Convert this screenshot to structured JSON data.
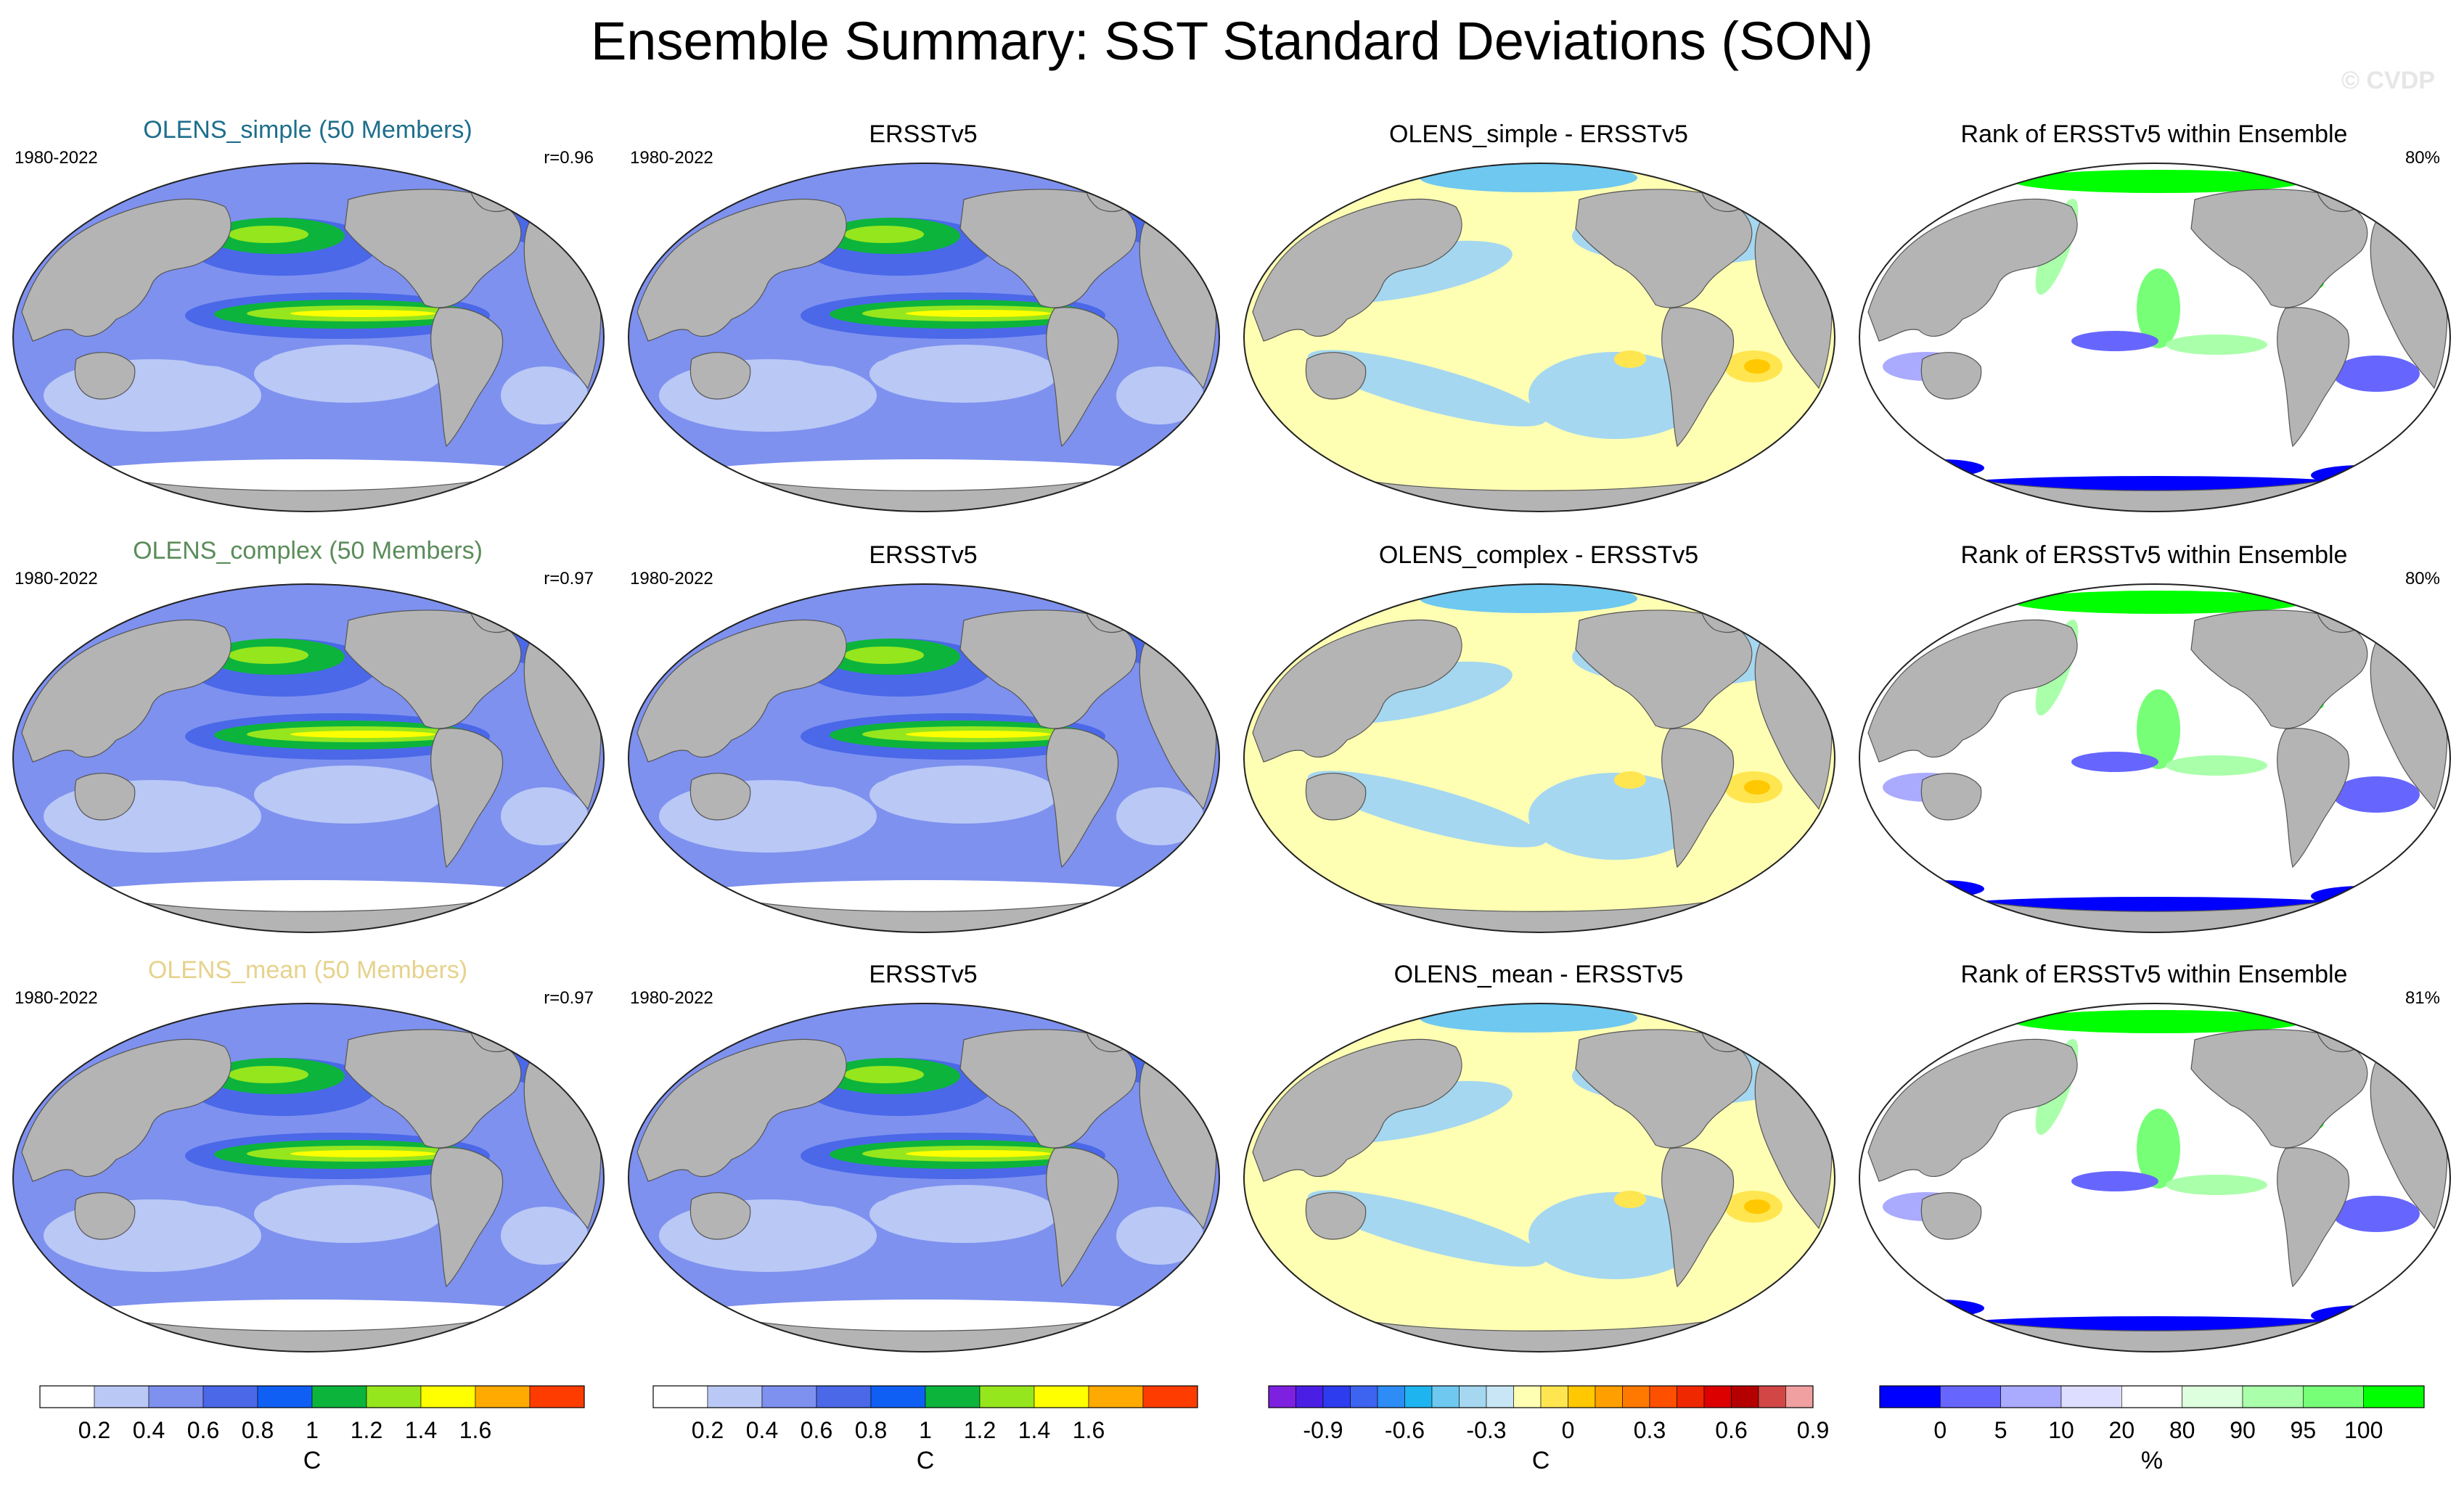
{
  "title": "Ensemble Summary: SST Standard Deviations (SON)",
  "watermark": "© CVDP",
  "colors": {
    "land": "#b4b4b4",
    "ocean_white": "#ffffff",
    "std_levels": [
      "#ffffff",
      "#b9c8f5",
      "#7e91ef",
      "#4a68e8",
      "#0f5ff5",
      "#0cb43c",
      "#96e61e",
      "#ffff00",
      "#ffaa00",
      "#ff3c00"
    ],
    "diff_levels": [
      "#7d20e0",
      "#4b1ee6",
      "#2d3cef",
      "#3c64f0",
      "#2d8cf5",
      "#1eb4f0",
      "#6ec8f0",
      "#a5d7f0",
      "#c8e6f5",
      "#ffffb4",
      "#ffe650",
      "#ffc800",
      "#ffa000",
      "#ff7800",
      "#ff5000",
      "#f02800",
      "#dc0000",
      "#b40000",
      "#d24646",
      "#f0a0a0"
    ],
    "rank_levels": [
      "#0000ff",
      "#6666ff",
      "#aaaaff",
      "#ddddff",
      "#ffffff",
      "#ddffdd",
      "#aaffaa",
      "#77ff77",
      "#00ff00"
    ]
  },
  "rows": [
    {
      "ensemble_label": "OLENS_simple (50 Members)",
      "ensemble_color": "#1e6e8c",
      "period": "1980-2022",
      "corr": "r=0.96",
      "obs_title": "ERSSTv5",
      "obs_period": "1980-2022",
      "diff_title": "OLENS_simple - ERSSTv5",
      "rank_title": "Rank of ERSSTv5 within Ensemble",
      "rank_pct": "80%"
    },
    {
      "ensemble_label": "OLENS_complex (50 Members)",
      "ensemble_color": "#5a8c5a",
      "period": "1980-2022",
      "corr": "r=0.97",
      "obs_title": "ERSSTv5",
      "obs_period": "1980-2022",
      "diff_title": "OLENS_complex - ERSSTv5",
      "rank_title": "Rank of ERSSTv5 within Ensemble",
      "rank_pct": "80%"
    },
    {
      "ensemble_label": "OLENS_mean (50 Members)",
      "ensemble_color": "#e6d28c",
      "period": "1980-2022",
      "corr": "r=0.97",
      "obs_title": "ERSSTv5",
      "obs_period": "1980-2022",
      "diff_title": "OLENS_mean - ERSSTv5",
      "rank_title": "Rank of ERSSTv5 within Ensemble",
      "rank_pct": "81%"
    }
  ],
  "colorbars": [
    {
      "ticks": [
        "0.2",
        "0.4",
        "0.6",
        "0.8",
        "1",
        "1.2",
        "1.4",
        "1.6"
      ],
      "unit": "C"
    },
    {
      "ticks": [
        "0.2",
        "0.4",
        "0.6",
        "0.8",
        "1",
        "1.2",
        "1.4",
        "1.6"
      ],
      "unit": "C"
    },
    {
      "ticks": [
        "-0.9",
        "-0.6",
        "-0.3",
        "0",
        "0.3",
        "0.6",
        "0.9"
      ],
      "unit": "C"
    },
    {
      "ticks": [
        "0",
        "5",
        "10",
        "20",
        "80",
        "90",
        "95",
        "100"
      ],
      "unit": "%"
    }
  ],
  "chart_data": {
    "type": "heatmap",
    "title": "Ensemble Summary: SST Standard Deviations (SON)",
    "std_contour_levels": [
      0.2,
      0.4,
      0.6,
      0.8,
      1,
      1.2,
      1.4,
      1.6
    ],
    "diff_contour_levels": [
      -0.9,
      -0.6,
      -0.3,
      0,
      0.3,
      0.6,
      0.9
    ],
    "rank_levels": [
      0,
      5,
      10,
      20,
      80,
      90,
      95,
      100
    ],
    "units": {
      "std": "C",
      "diff": "C",
      "rank": "%"
    },
    "panels": [
      {
        "row": "OLENS_simple",
        "column": "ensemble",
        "pattern_corr": 0.96,
        "period": "1980-2022"
      },
      {
        "row": "OLENS_simple",
        "column": "ERSSTv5",
        "period": "1980-2022"
      },
      {
        "row": "OLENS_simple",
        "column": "difference"
      },
      {
        "row": "OLENS_simple",
        "column": "rank",
        "percent_within_10_90": 80
      },
      {
        "row": "OLENS_complex",
        "column": "ensemble",
        "pattern_corr": 0.97,
        "period": "1980-2022"
      },
      {
        "row": "OLENS_complex",
        "column": "ERSSTv5",
        "period": "1980-2022"
      },
      {
        "row": "OLENS_complex",
        "column": "difference"
      },
      {
        "row": "OLENS_complex",
        "column": "rank",
        "percent_within_10_90": 80
      },
      {
        "row": "OLENS_mean",
        "column": "ensemble",
        "pattern_corr": 0.97,
        "period": "1980-2022"
      },
      {
        "row": "OLENS_mean",
        "column": "ERSSTv5",
        "period": "1980-2022"
      },
      {
        "row": "OLENS_mean",
        "column": "difference"
      },
      {
        "row": "OLENS_mean",
        "column": "rank",
        "percent_within_10_90": 81
      }
    ]
  }
}
